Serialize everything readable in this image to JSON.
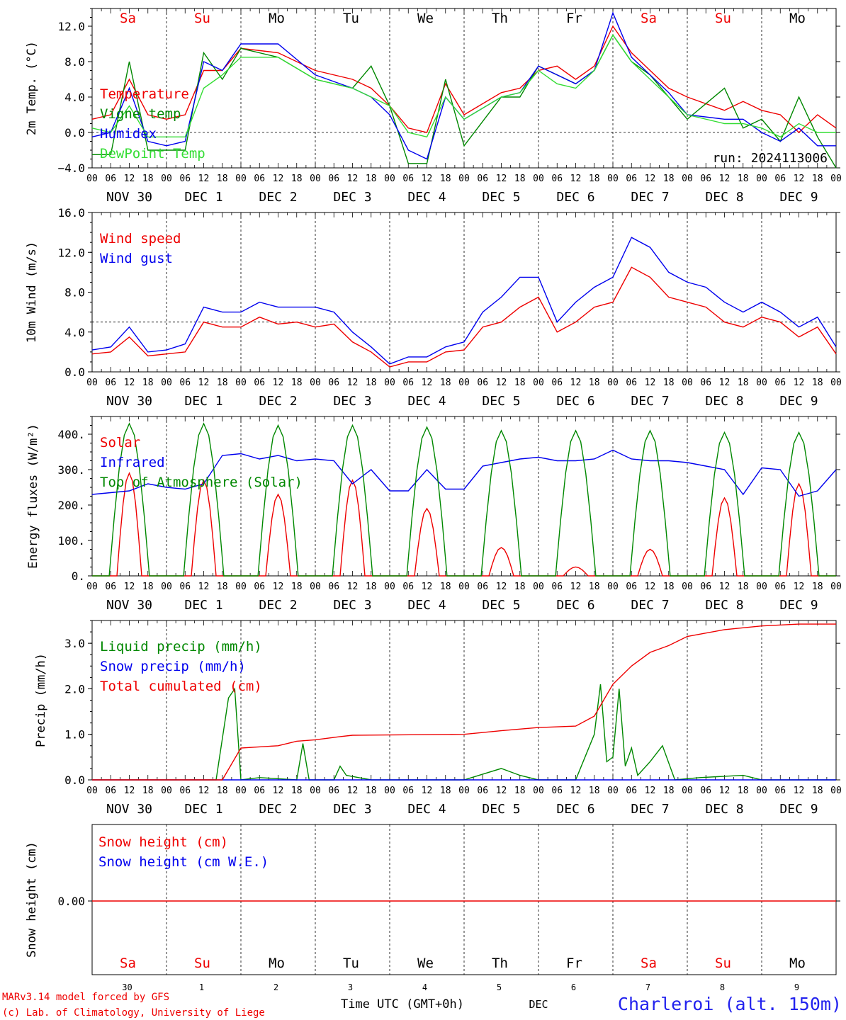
{
  "run_label": "run: 2024113006",
  "x_axis": {
    "hour_labels": [
      "00",
      "06",
      "12",
      "18"
    ],
    "day_labels": [
      "NOV 30",
      "DEC  1",
      "DEC  2",
      "DEC  3",
      "DEC  4",
      "DEC  5",
      "DEC  6",
      "DEC  7",
      "DEC  8",
      "DEC  9"
    ],
    "weekdays_top": [
      "Sa",
      "Su",
      "Mo",
      "Tu",
      "We",
      "Th",
      "Fr",
      "Sa",
      "Su",
      "Mo"
    ],
    "weekend_color": "#ee0000",
    "bottom_day_numbers": [
      "30",
      "1",
      "2",
      "3",
      "4",
      "5",
      "6",
      "7",
      "8",
      "9"
    ],
    "month_label": "DEC",
    "time_label": "Time UTC (GMT+0h)"
  },
  "footer": {
    "model_line": "MARv3.14 model forced by GFS",
    "credit_line": "(c) Lab. of Climatology, University of Liege",
    "station": "Charleroi (alt. 150m)"
  },
  "colors": {
    "red": "#ee0000",
    "green": "#008800",
    "blue": "#0000ee",
    "light_green": "#33dd33"
  },
  "chart_data": [
    {
      "type": "line",
      "ylabel": "2m Temp. (°C)",
      "ylim": [
        -4,
        14
      ],
      "yticks": [
        -4,
        0,
        4,
        8,
        12
      ],
      "ytick_labels": [
        "−4.0",
        "0.0",
        "4.0",
        "8.0",
        "12.0"
      ],
      "dashed_ref": 0,
      "x_unit": "hours since NOV 30 00 UTC",
      "series": [
        {
          "name": "Temperature",
          "color": "#ee0000",
          "x": [
            0,
            6,
            12,
            18,
            24,
            30,
            36,
            42,
            48,
            60,
            72,
            84,
            90,
            96,
            102,
            108,
            114,
            120,
            132,
            138,
            144,
            150,
            156,
            162,
            168,
            174,
            180,
            186,
            192,
            204,
            210,
            216,
            222,
            228,
            234,
            240
          ],
          "values": [
            1.5,
            2.0,
            6.0,
            2.0,
            1.5,
            2.0,
            7.0,
            7.0,
            9.5,
            9.0,
            7.0,
            6.0,
            5.0,
            3.0,
            0.5,
            0.0,
            5.5,
            2.0,
            4.5,
            5.0,
            7.0,
            7.5,
            6.0,
            7.5,
            12.0,
            9.0,
            7.0,
            5.0,
            4.0,
            2.5,
            3.5,
            2.5,
            2.0,
            0.0,
            2.0,
            0.5
          ]
        },
        {
          "name": "Vigne temp",
          "color": "#008800",
          "x": [
            0,
            6,
            12,
            18,
            24,
            30,
            36,
            42,
            48,
            60,
            72,
            84,
            90,
            96,
            102,
            108,
            114,
            120,
            132,
            138,
            144,
            150,
            156,
            162,
            168,
            174,
            180,
            186,
            192,
            204,
            210,
            216,
            222,
            228,
            234,
            240
          ],
          "values": [
            -2.5,
            -2.5,
            8.0,
            -2.0,
            -2.0,
            -2.0,
            9.0,
            6.0,
            9.5,
            8.5,
            6.0,
            5.0,
            7.5,
            3.0,
            -3.5,
            -3.5,
            6.0,
            -1.5,
            4.0,
            4.0,
            7.5,
            6.5,
            5.5,
            7.0,
            11.0,
            8.0,
            6.5,
            4.0,
            1.5,
            5.0,
            0.5,
            1.5,
            -1.0,
            4.0,
            -0.5,
            -4.0
          ]
        },
        {
          "name": "Humidex",
          "color": "#0000ee",
          "x": [
            0,
            6,
            12,
            18,
            24,
            30,
            36,
            42,
            48,
            60,
            72,
            84,
            90,
            96,
            102,
            108,
            114,
            120,
            132,
            138,
            144,
            150,
            156,
            162,
            168,
            174,
            180,
            186,
            192,
            204,
            210,
            216,
            222,
            228,
            234,
            240
          ],
          "values": [
            -0.5,
            0.0,
            5.0,
            -1.0,
            -1.5,
            -1.0,
            8.0,
            7.0,
            10.0,
            10.0,
            6.5,
            5.0,
            4.0,
            2.0,
            -2.0,
            -3.0,
            4.0,
            1.5,
            4.0,
            4.5,
            7.5,
            6.5,
            5.5,
            7.0,
            13.5,
            8.5,
            6.5,
            4.5,
            2.0,
            1.5,
            1.5,
            0.0,
            -1.0,
            0.5,
            -1.5,
            -1.5
          ]
        },
        {
          "name": "DewPoint Temp",
          "color": "#33dd33",
          "x": [
            0,
            6,
            12,
            18,
            24,
            30,
            36,
            42,
            48,
            60,
            72,
            84,
            90,
            96,
            102,
            108,
            114,
            120,
            132,
            138,
            144,
            150,
            156,
            162,
            168,
            174,
            180,
            186,
            192,
            204,
            210,
            216,
            222,
            228,
            234,
            240
          ],
          "values": [
            0.5,
            0.0,
            3.0,
            -0.5,
            -0.5,
            -0.5,
            5.0,
            6.5,
            8.5,
            8.5,
            6.0,
            5.0,
            4.0,
            3.0,
            0.0,
            -0.5,
            4.0,
            1.5,
            4.0,
            4.5,
            7.0,
            5.5,
            5.0,
            7.0,
            11.0,
            8.0,
            6.0,
            4.0,
            2.0,
            1.0,
            1.0,
            0.5,
            -0.5,
            1.0,
            0.0,
            0.0
          ]
        }
      ]
    },
    {
      "type": "line",
      "ylabel": "10m Wind (m/s)",
      "ylim": [
        0,
        16
      ],
      "yticks": [
        0,
        4,
        8,
        12,
        16
      ],
      "ytick_labels": [
        "0.0",
        "4.0",
        "8.0",
        "12.0",
        "16.0"
      ],
      "dashed_ref": 5,
      "series": [
        {
          "name": "Wind speed",
          "color": "#ee0000",
          "x": [
            0,
            6,
            12,
            18,
            24,
            30,
            36,
            42,
            48,
            54,
            60,
            66,
            72,
            78,
            84,
            90,
            96,
            102,
            108,
            114,
            120,
            126,
            132,
            138,
            144,
            150,
            156,
            162,
            168,
            174,
            180,
            186,
            192,
            198,
            204,
            210,
            216,
            222,
            228,
            234,
            240
          ],
          "values": [
            1.8,
            2.0,
            3.5,
            1.6,
            1.8,
            2.0,
            5.0,
            4.5,
            4.5,
            5.5,
            4.8,
            5.0,
            4.5,
            4.8,
            3.0,
            2.0,
            0.5,
            1.0,
            1.0,
            2.0,
            2.2,
            4.5,
            5.0,
            6.5,
            7.5,
            4.0,
            5.0,
            6.5,
            7.0,
            10.5,
            9.5,
            7.5,
            7.0,
            6.5,
            5.0,
            4.5,
            5.5,
            5.0,
            3.5,
            4.5,
            1.8
          ]
        },
        {
          "name": "Wind gust",
          "color": "#0000ee",
          "x": [
            0,
            6,
            12,
            18,
            24,
            30,
            36,
            42,
            48,
            54,
            60,
            66,
            72,
            78,
            84,
            90,
            96,
            102,
            108,
            114,
            120,
            126,
            132,
            138,
            144,
            150,
            156,
            162,
            168,
            174,
            180,
            186,
            192,
            198,
            204,
            210,
            216,
            222,
            228,
            234,
            240
          ],
          "values": [
            2.2,
            2.5,
            4.5,
            2.0,
            2.2,
            2.8,
            6.5,
            6.0,
            6.0,
            7.0,
            6.5,
            6.5,
            6.5,
            6.0,
            4.0,
            2.5,
            0.8,
            1.5,
            1.5,
            2.5,
            3.0,
            6.0,
            7.5,
            9.5,
            9.5,
            5.0,
            7.0,
            8.5,
            9.5,
            13.5,
            12.5,
            10.0,
            9.0,
            8.5,
            7.0,
            6.0,
            7.0,
            6.0,
            4.5,
            5.5,
            2.5
          ]
        }
      ]
    },
    {
      "type": "line",
      "ylabel": "Energy fluxes (W/m²)",
      "ylim": [
        0,
        450
      ],
      "yticks": [
        0,
        100,
        200,
        300,
        400
      ],
      "ytick_labels": [
        "0.",
        "100.",
        "200.",
        "300.",
        "400."
      ],
      "series": [
        {
          "name": "Solar",
          "color": "#ee0000",
          "peaks": [
            290,
            270,
            230,
            270,
            190,
            80,
            25,
            75,
            220,
            260
          ]
        },
        {
          "name": "Infrared",
          "color": "#0000ee",
          "x": [
            0,
            12,
            18,
            24,
            30,
            36,
            42,
            48,
            54,
            60,
            66,
            72,
            78,
            84,
            90,
            96,
            102,
            108,
            114,
            120,
            126,
            132,
            138,
            144,
            150,
            156,
            162,
            168,
            174,
            180,
            186,
            192,
            198,
            204,
            210,
            216,
            222,
            228,
            234,
            240
          ],
          "values": [
            230,
            240,
            260,
            250,
            245,
            260,
            340,
            345,
            330,
            340,
            325,
            330,
            325,
            260,
            300,
            240,
            240,
            300,
            245,
            245,
            310,
            320,
            330,
            335,
            325,
            325,
            330,
            355,
            330,
            325,
            325,
            320,
            310,
            300,
            230,
            305,
            300,
            225,
            240,
            300
          ]
        },
        {
          "name": "Top of Atmosphere (Solar)",
          "color": "#008800",
          "peaks": [
            430,
            430,
            425,
            425,
            420,
            410,
            410,
            410,
            405,
            405
          ]
        }
      ]
    },
    {
      "type": "line",
      "ylabel": "Precip (mm/h)",
      "ylim": [
        0,
        3.5
      ],
      "yticks": [
        0,
        1,
        2,
        3
      ],
      "ytick_labels": [
        "0.0",
        "1.0",
        "2.0",
        "3.0"
      ],
      "series": [
        {
          "name": "Liquid precip (mm/h)",
          "color": "#008800",
          "x": [
            0,
            40,
            44,
            46,
            48,
            54,
            66,
            68,
            70,
            78,
            80,
            82,
            90,
            120,
            132,
            138,
            144,
            156,
            162,
            164,
            166,
            168,
            170,
            172,
            174,
            176,
            180,
            184,
            188,
            196,
            210,
            216,
            240
          ],
          "values": [
            0,
            0,
            1.8,
            2.0,
            0,
            0.05,
            0,
            0.8,
            0,
            0,
            0.3,
            0.1,
            0,
            0,
            0.25,
            0.1,
            0,
            0,
            1.0,
            2.1,
            0.4,
            0.5,
            2.0,
            0.3,
            0.7,
            0.1,
            0.4,
            0.75,
            0,
            0.05,
            0.1,
            0,
            0
          ]
        },
        {
          "name": "Snow precip (mm/h)",
          "color": "#0000ee",
          "x": [
            0,
            240
          ],
          "values": [
            0,
            0
          ]
        },
        {
          "name": "Total cumulated (cm)",
          "color": "#ee0000",
          "x": [
            0,
            42,
            48,
            60,
            66,
            72,
            80,
            84,
            120,
            132,
            144,
            156,
            162,
            168,
            174,
            180,
            186,
            192,
            204,
            216,
            228,
            240
          ],
          "values": [
            0,
            0,
            0.7,
            0.75,
            0.85,
            0.88,
            0.95,
            0.98,
            1.0,
            1.08,
            1.15,
            1.18,
            1.4,
            2.1,
            2.5,
            2.8,
            2.95,
            3.15,
            3.3,
            3.38,
            3.42,
            3.42
          ]
        }
      ]
    },
    {
      "type": "line",
      "ylabel": "Snow height (cm)",
      "yticks": [
        0
      ],
      "ytick_labels": [
        "0.00"
      ],
      "series": [
        {
          "name": "Snow height (cm)",
          "color": "#ee0000",
          "x": [
            0,
            240
          ],
          "values": [
            0,
            0
          ]
        },
        {
          "name": "Snow height (cm W.E.)",
          "color": "#0000ee",
          "x": [
            0,
            240
          ],
          "values": [
            0,
            0
          ]
        }
      ]
    }
  ]
}
